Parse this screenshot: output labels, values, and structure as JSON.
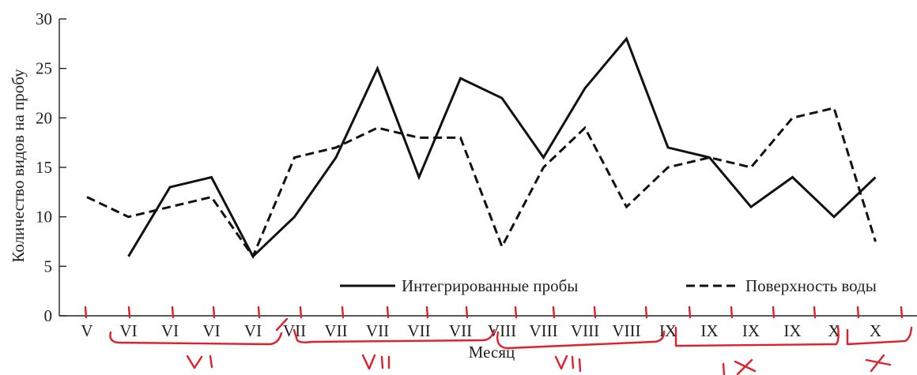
{
  "chart_data": {
    "type": "line",
    "categories": [
      "V",
      "VI",
      "VI",
      "VI",
      "VI",
      "VII",
      "VII",
      "VII",
      "VII",
      "VII",
      "VIII",
      "VIII",
      "VIII",
      "VIII",
      "IX",
      "IX",
      "IX",
      "IX",
      "X",
      "X"
    ],
    "series": [
      {
        "name": "Интегрированные пробы",
        "style": "solid",
        "color": "#111111",
        "values": [
          null,
          6,
          13,
          14,
          6,
          10,
          16,
          25,
          14,
          24,
          22,
          16,
          23,
          28,
          17,
          16,
          11,
          14,
          10,
          14
        ]
      },
      {
        "name": "Поверхность воды",
        "style": "dashed",
        "color": "#111111",
        "values": [
          12,
          10,
          11,
          12,
          6,
          16,
          17,
          19,
          18,
          18,
          7,
          15,
          19,
          11,
          15,
          16,
          15,
          20,
          21,
          7.5
        ]
      }
    ],
    "xlabel": "Месяц",
    "ylabel": "Количество видов на пробу",
    "ylim": [
      0,
      30
    ],
    "yticks": [
      0,
      5,
      10,
      15,
      20,
      25,
      30
    ],
    "grid": false,
    "legend_position": "bottom",
    "annotations": {
      "color": "#e0202a",
      "handwritten_labels": [
        "VI",
        "VII",
        "VIII",
        "IX",
        "X"
      ]
    }
  }
}
